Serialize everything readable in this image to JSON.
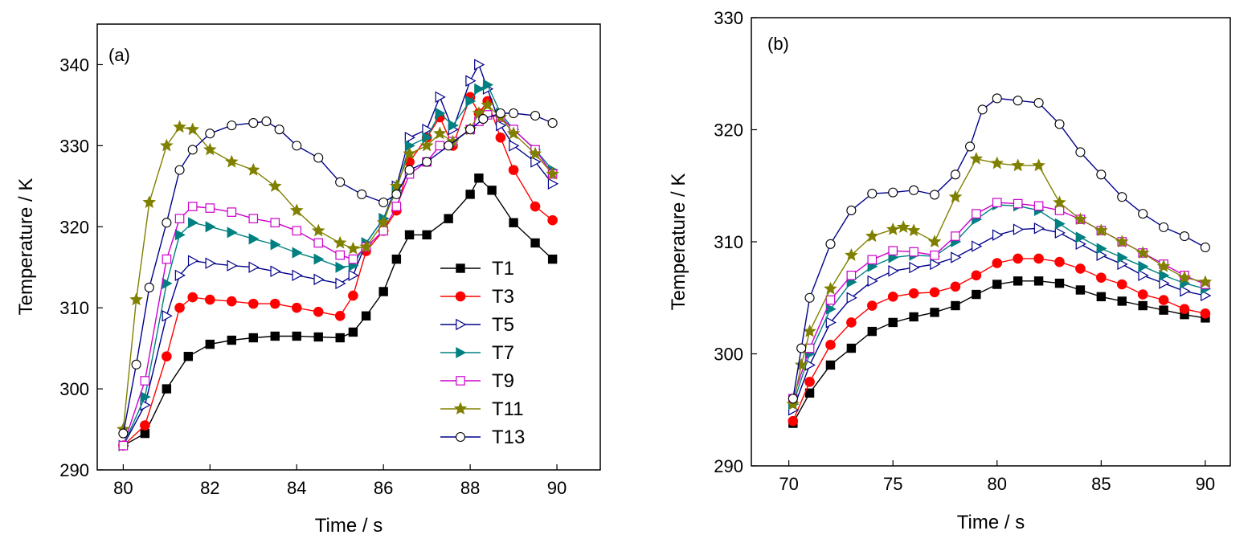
{
  "chart_data": [
    {
      "type": "line",
      "panel_label": "(a)",
      "xlabel": "Time / s",
      "ylabel": "Temperature / K",
      "xlim": [
        79.4,
        91
      ],
      "ylim": [
        290,
        345
      ],
      "xticks": [
        80,
        82,
        84,
        86,
        88,
        90
      ],
      "xtick_labels": [
        "80",
        "82",
        "84",
        "86",
        "88",
        "90"
      ],
      "yticks": [
        290,
        300,
        310,
        320,
        330,
        340
      ],
      "ytick_labels": [
        "290",
        "300",
        "310",
        "320",
        "330",
        "340"
      ],
      "grid": false,
      "legend_position": "bottom-right",
      "series": [
        {
          "name": "T1",
          "color": "#000000",
          "marker": "square-filled",
          "x": [
            80,
            80.5,
            81,
            81.5,
            82,
            82.5,
            83,
            83.5,
            84,
            84.5,
            85,
            85.3,
            85.6,
            86,
            86.3,
            86.6,
            87,
            87.5,
            88,
            88.2,
            88.5,
            89,
            89.5,
            89.9
          ],
          "y": [
            293,
            294.5,
            300,
            304,
            305.5,
            306,
            306.3,
            306.5,
            306.5,
            306.4,
            306.3,
            307,
            309,
            312,
            316,
            319,
            319,
            321,
            324,
            326,
            324.5,
            320.5,
            318,
            316
          ]
        },
        {
          "name": "T3",
          "color": "#ff0000",
          "marker": "circle-filled",
          "x": [
            80,
            80.5,
            81,
            81.3,
            81.6,
            82,
            82.5,
            83,
            83.5,
            84,
            84.5,
            85,
            85.3,
            85.6,
            86,
            86.3,
            86.6,
            87,
            87.3,
            87.6,
            88,
            88.2,
            88.4,
            88.7,
            89,
            89.5,
            89.9
          ],
          "y": [
            293,
            295.5,
            304,
            310,
            311.3,
            311,
            310.8,
            310.5,
            310.5,
            310,
            309.5,
            309,
            311.5,
            317,
            319.5,
            322,
            328,
            331,
            333.5,
            330,
            336,
            334,
            335.5,
            331,
            327,
            322.5,
            320.8
          ]
        },
        {
          "name": "T5",
          "color": "#00008b",
          "marker": "triangle-right-open",
          "x": [
            80,
            80.5,
            81,
            81.3,
            81.6,
            82,
            82.5,
            83,
            83.5,
            84,
            84.5,
            85,
            85.3,
            85.6,
            86,
            86.3,
            86.6,
            87,
            87.3,
            87.6,
            88,
            88.2,
            88.4,
            88.7,
            89,
            89.5,
            89.9
          ],
          "y": [
            293,
            298,
            309,
            314,
            315.8,
            315.5,
            315.2,
            315,
            314.5,
            314,
            313.5,
            313,
            314,
            318,
            321,
            325,
            331,
            332,
            336,
            332,
            338,
            340,
            337,
            332.5,
            330,
            328,
            325.3
          ]
        },
        {
          "name": "T7",
          "color": "#008080",
          "marker": "triangle-right-filled",
          "x": [
            80,
            80.5,
            81,
            81.3,
            81.6,
            82,
            82.5,
            83,
            83.5,
            84,
            84.5,
            85,
            85.3,
            85.6,
            86,
            86.3,
            86.6,
            87,
            87.3,
            87.6,
            88,
            88.2,
            88.4,
            88.7,
            89,
            89.5,
            89.9
          ],
          "y": [
            293,
            299,
            313,
            319,
            320.5,
            320,
            319.3,
            318.5,
            317.8,
            316.8,
            316,
            315,
            315.2,
            318,
            321,
            324.5,
            330,
            331,
            334,
            332.5,
            335.5,
            337,
            337.5,
            334,
            332,
            329.5,
            327
          ]
        },
        {
          "name": "T9",
          "color": "#cc00cc",
          "marker": "square-open",
          "x": [
            80,
            80.5,
            81,
            81.3,
            81.6,
            82,
            82.5,
            83,
            83.5,
            84,
            84.5,
            85,
            85.3,
            85.6,
            86,
            86.3,
            86.6,
            87,
            87.3,
            87.6,
            88,
            88.2,
            88.4,
            88.7,
            89,
            89.5,
            89.9
          ],
          "y": [
            293,
            301,
            316,
            321,
            322.5,
            322.3,
            321.8,
            321,
            320.5,
            319.5,
            318,
            316.5,
            316,
            317.5,
            319.5,
            322.5,
            326.5,
            328,
            330,
            330.5,
            332,
            333,
            333.8,
            333.5,
            332,
            329.5,
            326.5
          ]
        },
        {
          "name": "T11",
          "color": "#808000",
          "marker": "star-filled",
          "x": [
            80,
            80.3,
            80.6,
            81,
            81.3,
            81.6,
            82,
            82.5,
            83,
            83.5,
            84,
            84.5,
            85,
            85.3,
            85.6,
            86,
            86.3,
            86.6,
            87,
            87.3,
            87.6,
            88,
            88.2,
            88.4,
            88.7,
            89,
            89.5,
            89.9
          ],
          "y": [
            295,
            311,
            323,
            330,
            332.3,
            332,
            329.5,
            328,
            327,
            325,
            322,
            319.5,
            318,
            317.3,
            317.5,
            320.5,
            325,
            329,
            330,
            331.5,
            330.5,
            332,
            334,
            335,
            333.5,
            331.5,
            329,
            326.5
          ]
        },
        {
          "name": "T13",
          "color": "#00008b",
          "marker": "circle-open",
          "x": [
            80,
            80.3,
            80.6,
            81,
            81.3,
            81.6,
            82,
            82.5,
            83,
            83.3,
            83.6,
            84,
            84.5,
            85,
            85.5,
            86,
            86.3,
            86.6,
            87,
            87.5,
            88,
            88.3,
            88.7,
            89,
            89.5,
            89.9
          ],
          "y": [
            294.5,
            303,
            312.5,
            320.5,
            327,
            329.5,
            331.5,
            332.5,
            332.8,
            333,
            332,
            330,
            328.5,
            325.5,
            324,
            323,
            324,
            327,
            328,
            330,
            332,
            333.3,
            334,
            334,
            333.7,
            332.8
          ]
        }
      ]
    },
    {
      "type": "line",
      "panel_label": "(b)",
      "xlabel": "Time / s",
      "ylabel": "Temperature / K",
      "xlim": [
        68.2,
        91.2
      ],
      "ylim": [
        290,
        330
      ],
      "xticks": [
        70,
        75,
        80,
        85,
        90
      ],
      "xtick_labels": [
        "70",
        "75",
        "80",
        "85",
        "90"
      ],
      "yticks": [
        290,
        300,
        310,
        320,
        330
      ],
      "ytick_labels": [
        "290",
        "300",
        "310",
        "320",
        "330"
      ],
      "grid": false,
      "legend_position": "none",
      "series": [
        {
          "name": "T1",
          "color": "#000000",
          "marker": "square-filled",
          "x": [
            70.2,
            71,
            72,
            73,
            74,
            75,
            76,
            77,
            78,
            79,
            80,
            81,
            82,
            83,
            84,
            85,
            86,
            87,
            88,
            89,
            90
          ],
          "y": [
            293.8,
            296.5,
            299,
            300.5,
            302,
            302.8,
            303.3,
            303.7,
            304.3,
            305.3,
            306.2,
            306.5,
            306.5,
            306.3,
            305.7,
            305.1,
            304.7,
            304.3,
            303.9,
            303.5,
            303.2
          ]
        },
        {
          "name": "T3",
          "color": "#ff0000",
          "marker": "circle-filled",
          "x": [
            70.2,
            71,
            72,
            73,
            74,
            75,
            76,
            77,
            78,
            79,
            80,
            81,
            82,
            83,
            84,
            85,
            86,
            87,
            88,
            89,
            90
          ],
          "y": [
            294,
            297.5,
            300.8,
            302.8,
            304.3,
            305.1,
            305.4,
            305.5,
            306,
            307,
            308.1,
            308.5,
            308.5,
            308.2,
            307.6,
            306.8,
            306.2,
            305.3,
            304.8,
            304,
            303.6
          ]
        },
        {
          "name": "T5",
          "color": "#00008b",
          "marker": "triangle-right-open",
          "x": [
            70.2,
            71,
            72,
            73,
            74,
            75,
            76,
            77,
            78,
            79,
            80,
            81,
            82,
            83,
            84,
            85,
            86,
            87,
            88,
            89,
            90
          ],
          "y": [
            295,
            299,
            302.8,
            305,
            306.5,
            307.4,
            307.7,
            308,
            308.6,
            309.6,
            310.6,
            311.1,
            311.2,
            310.8,
            309.8,
            308.8,
            308,
            307,
            306.3,
            305.6,
            305.2
          ]
        },
        {
          "name": "T7",
          "color": "#008080",
          "marker": "triangle-right-filled",
          "x": [
            70.2,
            71,
            72,
            73,
            74,
            75,
            76,
            77,
            78,
            79,
            80,
            81,
            82,
            83,
            84,
            85,
            86,
            87,
            88,
            89,
            90
          ],
          "y": [
            295.5,
            300,
            304,
            306.4,
            307.8,
            308.6,
            308.8,
            308.7,
            310,
            312,
            313.3,
            313.2,
            312.8,
            311.6,
            310.4,
            309.4,
            308.6,
            307.8,
            307,
            306.3,
            305.8
          ]
        },
        {
          "name": "T9",
          "color": "#cc00cc",
          "marker": "square-open",
          "x": [
            70.2,
            71,
            72,
            73,
            74,
            75,
            76,
            77,
            78,
            79,
            80,
            81,
            82,
            83,
            84,
            85,
            86,
            87,
            88,
            89,
            90
          ],
          "y": [
            296,
            300.5,
            304.8,
            307,
            308.4,
            309.2,
            309.1,
            308.8,
            310.5,
            312.5,
            313.5,
            313.4,
            313.2,
            312.8,
            312,
            311,
            310,
            309,
            308,
            307,
            306.2
          ]
        },
        {
          "name": "T11",
          "color": "#808000",
          "marker": "star-filled",
          "x": [
            70.2,
            70.6,
            71,
            72,
            73,
            74,
            75,
            75.5,
            76,
            77,
            78,
            79,
            80,
            81,
            82,
            83,
            84,
            85,
            86,
            87,
            88,
            89,
            90
          ],
          "y": [
            295.5,
            299,
            302,
            305.8,
            308.8,
            310.5,
            311.1,
            311.3,
            311,
            310,
            314,
            317.4,
            317,
            316.8,
            316.8,
            313.5,
            312,
            311,
            310,
            309,
            307.8,
            306.8,
            306.4
          ]
        },
        {
          "name": "T13",
          "color": "#00008b",
          "marker": "circle-open",
          "x": [
            70.2,
            70.6,
            71,
            72,
            73,
            74,
            75,
            76,
            77,
            78,
            78.7,
            79.3,
            80,
            81,
            82,
            83,
            84,
            85,
            86,
            87,
            88,
            89,
            90
          ],
          "y": [
            296,
            300.5,
            305,
            309.8,
            312.8,
            314.3,
            314.4,
            314.6,
            314.2,
            316,
            318.5,
            321.8,
            322.8,
            322.6,
            322.4,
            320.5,
            318,
            316,
            314,
            312.5,
            311.3,
            310.5,
            309.5
          ]
        }
      ]
    }
  ]
}
